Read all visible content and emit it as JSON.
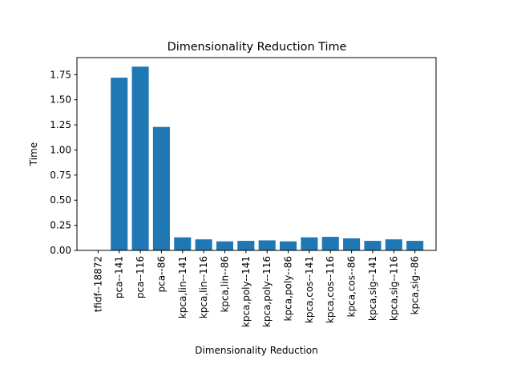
{
  "chart_data": {
    "type": "bar",
    "title": "Dimensionality Reduction Time",
    "xlabel": "Dimensionality Reduction",
    "ylabel": "Time",
    "categories": [
      "tfidf--18872",
      "pca--141",
      "pca--116",
      "pca--86",
      "kpca,lin--141",
      "kpca,lin--116",
      "kpca,lin--86",
      "kpca,poly--141",
      "kpca,poly--116",
      "kpca,poly--86",
      "kpca,cos--141",
      "kpca,cos--116",
      "kpca,cos--86",
      "kpca,sig--141",
      "kpca,sig--116",
      "kpca,sig--86"
    ],
    "values": [
      0.0,
      1.72,
      1.83,
      1.23,
      0.13,
      0.11,
      0.09,
      0.095,
      0.1,
      0.09,
      0.13,
      0.135,
      0.12,
      0.095,
      0.11,
      0.095
    ],
    "ylim": [
      0,
      1.92
    ],
    "yticks": [
      "0.00",
      "0.25",
      "0.50",
      "0.75",
      "1.00",
      "1.25",
      "1.50",
      "1.75"
    ],
    "grid": false,
    "colors": {
      "bar": "#1f77b4",
      "axis": "#000000"
    }
  }
}
